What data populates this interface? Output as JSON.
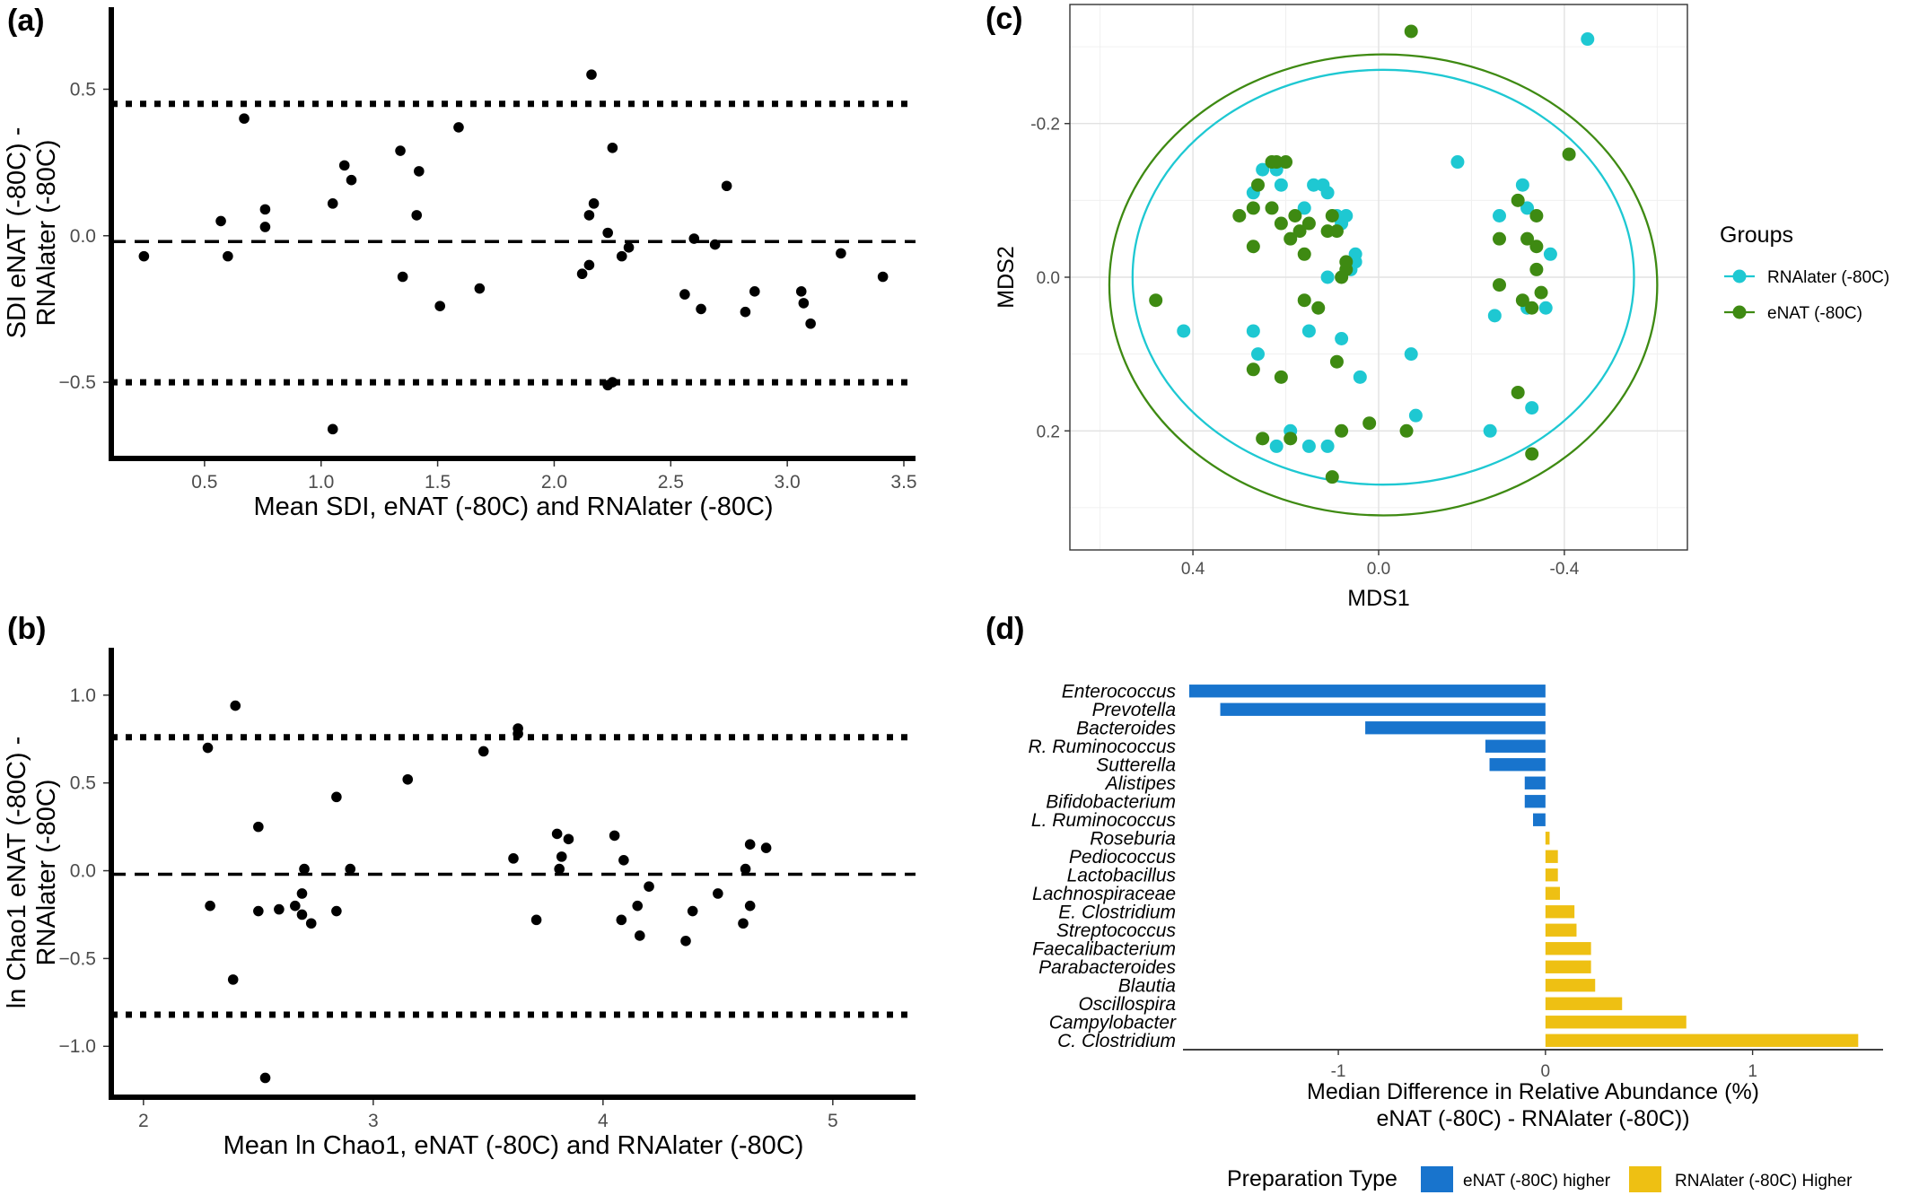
{
  "chart_data": [
    {
      "panel": "(a)",
      "type": "scatter",
      "xlabel": "Mean SDI, eNAT (-80C) and RNAlater (-80C)",
      "ylabel": [
        "SDI eNAT (-80C) -",
        "RNAlater (-80C)"
      ],
      "xticks": [
        0.5,
        1.0,
        1.5,
        2.0,
        2.5,
        3.0,
        3.5
      ],
      "xtick_labels": [
        "0.5",
        "1.0",
        "1.5",
        "2.0",
        "2.5",
        "3.0",
        "3.5"
      ],
      "yticks": [
        -0.5,
        0.0,
        0.5
      ],
      "ytick_labels": [
        "−0.5",
        "0.0",
        "0.5"
      ],
      "xlim": [
        0.1,
        3.55
      ],
      "ylim": [
        -0.76,
        0.78
      ],
      "mean_line": -0.02,
      "limits_of_agreement": [
        0.45,
        -0.5
      ],
      "points": [
        [
          0.24,
          -0.07
        ],
        [
          0.57,
          0.05
        ],
        [
          0.6,
          -0.07
        ],
        [
          0.67,
          0.4
        ],
        [
          0.76,
          0.09
        ],
        [
          0.76,
          0.03
        ],
        [
          1.05,
          0.11
        ],
        [
          1.1,
          0.24
        ],
        [
          1.13,
          0.19
        ],
        [
          1.05,
          -0.66
        ],
        [
          1.34,
          0.29
        ],
        [
          1.35,
          -0.14
        ],
        [
          1.41,
          0.07
        ],
        [
          1.42,
          0.22
        ],
        [
          1.51,
          -0.24
        ],
        [
          1.59,
          0.37
        ],
        [
          1.68,
          -0.18
        ],
        [
          2.12,
          -0.13
        ],
        [
          2.15,
          0.07
        ],
        [
          2.15,
          -0.1
        ],
        [
          2.16,
          0.55
        ],
        [
          2.17,
          0.11
        ],
        [
          2.23,
          0.01
        ],
        [
          2.23,
          -0.51
        ],
        [
          2.25,
          0.3
        ],
        [
          2.29,
          -0.07
        ],
        [
          2.32,
          -0.04
        ],
        [
          2.25,
          -0.5
        ],
        [
          2.56,
          -0.2
        ],
        [
          2.6,
          -0.01
        ],
        [
          2.63,
          -0.25
        ],
        [
          2.69,
          -0.03
        ],
        [
          2.74,
          0.17
        ],
        [
          2.82,
          -0.26
        ],
        [
          2.86,
          -0.19
        ],
        [
          3.06,
          -0.19
        ],
        [
          3.07,
          -0.23
        ],
        [
          3.1,
          -0.3
        ],
        [
          3.23,
          -0.06
        ],
        [
          3.41,
          -0.14
        ]
      ]
    },
    {
      "panel": "(b)",
      "type": "scatter",
      "xlabel": "Mean ln Chao1, eNAT (-80C) and RNAlater (-80C)",
      "ylabel": [
        "ln Chao1 eNAT (-80C) -",
        "RNAlater (-80C)"
      ],
      "xticks": [
        2,
        3,
        4,
        5
      ],
      "xtick_labels": [
        "2",
        "3",
        "4",
        "5"
      ],
      "yticks": [
        -1.0,
        -0.5,
        0.0,
        0.5,
        1.0
      ],
      "ytick_labels": [
        "−1.0",
        "−0.5",
        "0.0",
        "0.5",
        "1.0"
      ],
      "xlim": [
        1.86,
        5.36
      ],
      "ylim": [
        -1.29,
        1.27
      ],
      "mean_line": -0.02,
      "limits_of_agreement": [
        0.76,
        -0.82
      ],
      "points": [
        [
          2.28,
          0.7
        ],
        [
          2.29,
          -0.2
        ],
        [
          2.4,
          0.94
        ],
        [
          2.39,
          -0.62
        ],
        [
          2.5,
          0.25
        ],
        [
          2.5,
          -0.23
        ],
        [
          2.53,
          -1.18
        ],
        [
          2.59,
          -0.22
        ],
        [
          2.66,
          -0.2
        ],
        [
          2.7,
          0.01
        ],
        [
          2.69,
          -0.25
        ],
        [
          2.69,
          -0.13
        ],
        [
          2.73,
          -0.3
        ],
        [
          2.84,
          0.42
        ],
        [
          2.84,
          -0.23
        ],
        [
          2.9,
          0.01
        ],
        [
          3.15,
          0.52
        ],
        [
          3.48,
          0.68
        ],
        [
          3.63,
          0.81
        ],
        [
          3.63,
          0.78
        ],
        [
          3.61,
          0.07
        ],
        [
          3.71,
          -0.28
        ],
        [
          3.8,
          0.21
        ],
        [
          3.81,
          0.01
        ],
        [
          3.82,
          0.08
        ],
        [
          3.85,
          0.18
        ],
        [
          4.05,
          0.2
        ],
        [
          4.08,
          -0.28
        ],
        [
          4.09,
          0.06
        ],
        [
          4.15,
          -0.2
        ],
        [
          4.16,
          -0.37
        ],
        [
          4.2,
          -0.09
        ],
        [
          4.36,
          -0.4
        ],
        [
          4.39,
          -0.23
        ],
        [
          4.5,
          -0.13
        ],
        [
          4.61,
          -0.3
        ],
        [
          4.62,
          0.01
        ],
        [
          4.64,
          0.15
        ],
        [
          4.64,
          -0.2
        ],
        [
          4.71,
          0.13
        ]
      ]
    },
    {
      "panel": "(c)",
      "type": "scatter",
      "xlabel": "MDS1",
      "ylabel": "MDS2",
      "xticks": [
        0.4,
        0.0,
        -0.4
      ],
      "xtick_labels": [
        "0.4",
        "0.0",
        "-0.4"
      ],
      "yticks": [
        -0.2,
        0.0,
        0.2
      ],
      "ytick_labels": [
        "-0.2",
        "0.0",
        "0.2"
      ],
      "x_reversed": true,
      "y_reversed": true,
      "xlim": [
        0.665,
        -0.665
      ],
      "ylim": [
        -0.355,
        0.355
      ],
      "grid": true,
      "legend_title": "Groups",
      "legend_position": "right",
      "series": [
        {
          "name": "RNAlater (-80C)",
          "color": "#1ec8d2",
          "ellipse": {
            "cx": -0.01,
            "cy": 0.0,
            "rx": 0.54,
            "ry": 0.27
          },
          "points": [
            [
              -0.45,
              -0.31
            ],
            [
              -0.17,
              -0.15
            ],
            [
              0.27,
              -0.11
            ],
            [
              0.25,
              -0.14
            ],
            [
              0.22,
              -0.14
            ],
            [
              0.21,
              -0.12
            ],
            [
              0.14,
              -0.12
            ],
            [
              0.12,
              -0.12
            ],
            [
              0.11,
              -0.11
            ],
            [
              0.16,
              -0.09
            ],
            [
              0.09,
              -0.08
            ],
            [
              0.08,
              -0.07
            ],
            [
              0.07,
              -0.08
            ],
            [
              0.05,
              -0.03
            ],
            [
              0.11,
              0.0
            ],
            [
              0.06,
              -0.01
            ],
            [
              0.05,
              -0.02
            ],
            [
              0.27,
              0.07
            ],
            [
              0.26,
              0.1
            ],
            [
              0.15,
              0.07
            ],
            [
              0.08,
              0.08
            ],
            [
              0.04,
              0.13
            ],
            [
              0.42,
              0.07
            ],
            [
              0.19,
              0.2
            ],
            [
              0.15,
              0.22
            ],
            [
              0.22,
              0.22
            ],
            [
              0.11,
              0.22
            ],
            [
              -0.07,
              0.1
            ],
            [
              -0.08,
              0.18
            ],
            [
              -0.24,
              0.2
            ],
            [
              -0.31,
              -0.12
            ],
            [
              -0.32,
              -0.09
            ],
            [
              -0.26,
              -0.08
            ],
            [
              -0.32,
              0.04
            ],
            [
              -0.25,
              0.05
            ],
            [
              -0.36,
              0.04
            ],
            [
              -0.33,
              0.17
            ],
            [
              -0.37,
              -0.03
            ]
          ]
        },
        {
          "name": "eNAT (-80C)",
          "color": "#3e8a12",
          "ellipse": {
            "cx": -0.01,
            "cy": 0.01,
            "rx": 0.59,
            "ry": 0.3
          },
          "points": [
            [
              -0.07,
              -0.32
            ],
            [
              -0.41,
              -0.16
            ],
            [
              0.23,
              -0.15
            ],
            [
              0.22,
              -0.15
            ],
            [
              0.2,
              -0.15
            ],
            [
              0.26,
              -0.12
            ],
            [
              0.27,
              -0.09
            ],
            [
              0.3,
              -0.08
            ],
            [
              0.23,
              -0.09
            ],
            [
              0.21,
              -0.07
            ],
            [
              0.18,
              -0.08
            ],
            [
              0.15,
              -0.07
            ],
            [
              0.11,
              -0.06
            ],
            [
              0.1,
              -0.08
            ],
            [
              0.27,
              -0.04
            ],
            [
              0.19,
              -0.05
            ],
            [
              0.17,
              -0.06
            ],
            [
              0.09,
              -0.06
            ],
            [
              0.07,
              -0.01
            ],
            [
              0.07,
              -0.02
            ],
            [
              0.16,
              -0.03
            ],
            [
              0.08,
              0.0
            ],
            [
              0.16,
              0.03
            ],
            [
              0.13,
              0.04
            ],
            [
              0.48,
              0.03
            ],
            [
              0.27,
              0.12
            ],
            [
              0.21,
              0.13
            ],
            [
              0.09,
              0.11
            ],
            [
              0.25,
              0.21
            ],
            [
              0.19,
              0.21
            ],
            [
              0.08,
              0.2
            ],
            [
              0.02,
              0.19
            ],
            [
              0.1,
              0.26
            ],
            [
              -0.06,
              0.2
            ],
            [
              -0.3,
              -0.1
            ],
            [
              -0.34,
              -0.08
            ],
            [
              -0.34,
              -0.04
            ],
            [
              -0.26,
              -0.05
            ],
            [
              -0.32,
              -0.05
            ],
            [
              -0.34,
              -0.01
            ],
            [
              -0.35,
              0.02
            ],
            [
              -0.33,
              0.04
            ],
            [
              -0.26,
              0.01
            ],
            [
              -0.31,
              0.03
            ],
            [
              -0.3,
              0.15
            ],
            [
              -0.33,
              0.23
            ]
          ]
        }
      ]
    },
    {
      "panel": "(d)",
      "type": "bar",
      "orientation": "horizontal",
      "xlabel": [
        "Median Difference in Relative Abundance (%)",
        "eNAT (-80C) - RNAlater (-80C))"
      ],
      "xticks": [
        -1,
        0,
        1
      ],
      "xtick_labels": [
        "-1",
        "0",
        "1"
      ],
      "xlim": [
        -1.75,
        1.63
      ],
      "legend_title": "Preparation Type",
      "legend_position": "bottom",
      "legend": [
        {
          "name": "eNAT (-80C) higher",
          "color": "#1874cd"
        },
        {
          "name": "RNAlater (-80C) Higher",
          "color": "#eec013"
        }
      ],
      "categories": [
        "Enterococcus",
        "Prevotella",
        "Bacteroides",
        "R. Ruminococcus",
        "Sutterella",
        "Alistipes",
        "Bifidobacterium",
        "L. Ruminococcus",
        "Roseburia",
        "Pediococcus",
        "Lactobacillus",
        "Lachnospiraceae",
        "E. Clostridium",
        "Streptococcus",
        "Faecalibacterium",
        "Parabacteroides",
        "Blautia",
        "Oscillospira",
        "Campylobacter",
        "C. Clostridium"
      ],
      "values": [
        -1.72,
        -1.57,
        -0.87,
        -0.29,
        -0.27,
        -0.1,
        -0.1,
        -0.06,
        0.02,
        0.06,
        0.06,
        0.07,
        0.14,
        0.15,
        0.22,
        0.22,
        0.24,
        0.37,
        0.68,
        1.51
      ]
    }
  ]
}
